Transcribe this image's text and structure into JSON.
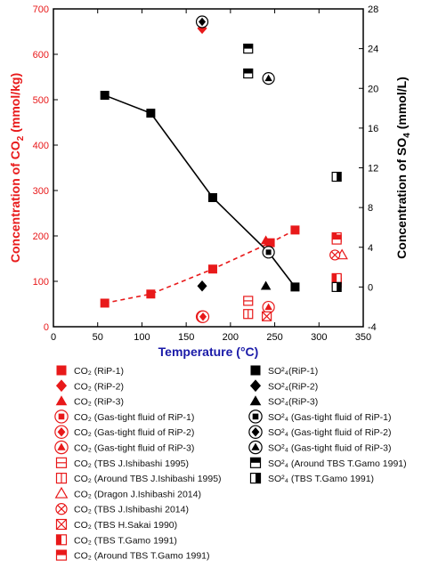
{
  "chart_data": {
    "type": "scatter",
    "xlabel": "Temperature (°C)",
    "ylabel_left": "Concentration of CO",
    "ylabel_left_sub": "2",
    "ylabel_left_unit": " (mmol/kg)",
    "ylabel_right": "Concentration of SO",
    "ylabel_right_sub": "4",
    "ylabel_right_unit": " (mmol/L)",
    "xlim": [
      0,
      350
    ],
    "ylim_left": [
      0,
      700
    ],
    "ylim_right": [
      -4,
      28
    ],
    "x_ticks": [
      "0",
      "50",
      "100",
      "150",
      "200",
      "250",
      "300",
      "350"
    ],
    "y_left_ticks": [
      "0",
      "100",
      "200",
      "300",
      "400",
      "500",
      "600",
      "700"
    ],
    "y_right_ticks": [
      "-4",
      "0",
      "4",
      "8",
      "12",
      "16",
      "20",
      "24",
      "28"
    ],
    "colors": {
      "co2": "#e8191a",
      "so4": "#000000",
      "axis": "#000000"
    },
    "series": [
      {
        "legend": "CO₂ (RiP-1)",
        "axis": "left",
        "marker": "square-filled",
        "color": "#e8191a",
        "line": "dashed",
        "points": [
          [
            58,
            52
          ],
          [
            110,
            72
          ],
          [
            180,
            127
          ],
          [
            245,
            185
          ],
          [
            273,
            213
          ]
        ]
      },
      {
        "legend": "CO₂ (RiP-2)",
        "axis": "left",
        "marker": "diamond-filled",
        "color": "#e8191a",
        "points": [
          [
            168,
            657
          ]
        ]
      },
      {
        "legend": "CO₂ (RiP-3)",
        "axis": "left",
        "marker": "triangle-filled",
        "color": "#e8191a",
        "points": [
          [
            240,
            190
          ]
        ]
      },
      {
        "legend": "CO₂ (Gas-tight fluid of RiP-1)",
        "axis": "left",
        "marker": "circle-square",
        "color": "#e8191a",
        "points": [
          [
            168,
            22
          ]
        ]
      },
      {
        "legend": "CO₂ (Gas-tight fluid of RiP-2)",
        "axis": "left",
        "marker": "circle-diamond",
        "color": "#e8191a",
        "points": [
          [
            169,
            22
          ]
        ]
      },
      {
        "legend": "CO₂ (Gas-tight fluid of RiP-3)",
        "axis": "left",
        "marker": "circle-triangle",
        "color": "#e8191a",
        "points": [
          [
            243,
            43
          ]
        ]
      },
      {
        "legend": "CO₂ (TBS J.Ishibashi 1995)",
        "axis": "left",
        "marker": "square-hline",
        "color": "#e8191a",
        "points": [
          [
            220,
            57
          ],
          [
            320,
            105
          ]
        ]
      },
      {
        "legend": "CO₂ (Around TBS J.Ishibashi 1995)",
        "axis": "left",
        "marker": "square-vline",
        "color": "#e8191a",
        "points": [
          [
            220,
            28
          ],
          [
            320,
            97
          ]
        ]
      },
      {
        "legend": "CO₂ (Dragon J.Ishibashi 2014)",
        "axis": "left",
        "marker": "triangle-open",
        "color": "#e8191a",
        "points": [
          [
            326,
            158
          ]
        ]
      },
      {
        "legend": "CO₂ (TBS J.Ishibashi 2014)",
        "axis": "left",
        "marker": "circle-x",
        "color": "#e8191a",
        "points": [
          [
            318,
            158
          ]
        ]
      },
      {
        "legend": "CO₂ (TBS H.Sakai 1990)",
        "axis": "left",
        "marker": "square-x",
        "color": "#e8191a",
        "points": [
          [
            241,
            23
          ]
        ]
      },
      {
        "legend": "CO₂ (TBS T.Gamo 1991)",
        "axis": "left",
        "marker": "square-half-left",
        "color": "#e8191a",
        "points": [
          [
            320,
            197
          ],
          [
            320,
            107
          ]
        ]
      },
      {
        "legend": "CO₂ (Around TBS T.Gamo 1991)",
        "axis": "left",
        "marker": "square-half-top",
        "color": "#e8191a",
        "points": [
          [
            320,
            192
          ]
        ]
      },
      {
        "legend": "SO²₄(RiP-1)",
        "axis": "right",
        "marker": "square-filled",
        "color": "#000000",
        "line": "solid",
        "points": [
          [
            58,
            19.3
          ],
          [
            110,
            17.5
          ],
          [
            180,
            9.0
          ],
          [
            243,
            3.5
          ],
          [
            273,
            0.0
          ]
        ]
      },
      {
        "legend": "SO²₄(RiP-2)",
        "axis": "right",
        "marker": "diamond-filled",
        "color": "#000000",
        "points": [
          [
            168,
            0.1
          ]
        ]
      },
      {
        "legend": "SO²₄(RiP-3)",
        "axis": "right",
        "marker": "triangle-filled",
        "color": "#000000",
        "points": [
          [
            240,
            0.1
          ]
        ]
      },
      {
        "legend": "SO²₄ (Gas-tight fluid of RiP-1)",
        "axis": "right",
        "marker": "circle-square",
        "color": "#000000",
        "points": [
          [
            243,
            3.5
          ]
        ]
      },
      {
        "legend": "SO²₄ (Gas-tight fluid of RiP-2)",
        "axis": "right",
        "marker": "circle-diamond",
        "color": "#000000",
        "points": [
          [
            168,
            26.7
          ]
        ]
      },
      {
        "legend": "SO²₄ (Gas-tight fluid of RiP-3)",
        "axis": "right",
        "marker": "circle-triangle",
        "color": "#000000",
        "points": [
          [
            243,
            21.0
          ]
        ]
      },
      {
        "legend": "SO²₄ (Around TBS T.Gamo 1991)",
        "axis": "right",
        "marker": "square-half-top",
        "color": "#000000",
        "points": [
          [
            220,
            24.0
          ],
          [
            220,
            21.5
          ]
        ]
      },
      {
        "legend": "SO²₄ (TBS T.Gamo 1991)",
        "axis": "right",
        "marker": "square-half-right",
        "color": "#000000",
        "points": [
          [
            320,
            11.1
          ],
          [
            320,
            0.0
          ]
        ]
      }
    ]
  }
}
